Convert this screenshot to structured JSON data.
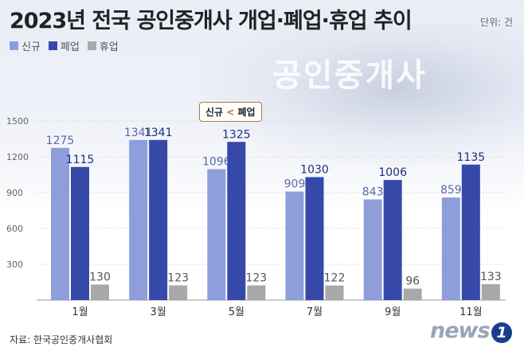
{
  "header": {
    "title": "2023년 전국 공인중개사 개업·폐업·휴업 추이",
    "unit": "단위: 건"
  },
  "callout": {
    "text_a": "신규",
    "text_sep": " < ",
    "text_b": "폐업"
  },
  "background_text": "공인중개사",
  "source": "자료: 한국공인중개사협회",
  "logo": {
    "text": "news",
    "badge": "1"
  },
  "colors": {
    "new": "#8e9edb",
    "closed": "#3649a8",
    "suspended": "#a8a8a8"
  },
  "chart_data": {
    "type": "bar",
    "categories": [
      "1월",
      "3월",
      "5월",
      "7월",
      "9월",
      "11월"
    ],
    "series": [
      {
        "name": "신규",
        "values": [
          1275,
          1341,
          1096,
          909,
          843,
          859
        ]
      },
      {
        "name": "폐업",
        "values": [
          1115,
          1341,
          1325,
          1030,
          1006,
          1135
        ]
      },
      {
        "name": "휴업",
        "values": [
          130,
          123,
          123,
          122,
          96,
          133
        ]
      }
    ],
    "yticks": [
      300,
      600,
      900,
      1200,
      1500
    ],
    "ylim": [
      0,
      1500
    ],
    "grid": true,
    "legend_position": "top-left"
  }
}
